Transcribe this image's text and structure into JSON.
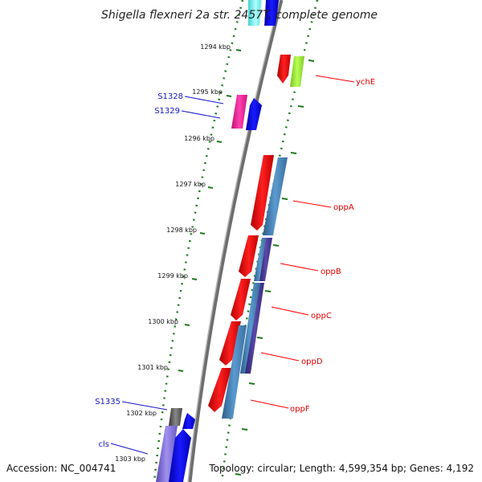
{
  "title": "Shigella flexneri 2a str. 2457T, complete genome",
  "footer": {
    "accession": "Accession: NC_004741",
    "topology": "Topology: circular; Length: 4,599,354 bp; Genes: 4,192"
  },
  "kbp_ticks": [
    "1294 kbp",
    "1295 kbp",
    "1296 kbp",
    "1297 kbp",
    "1298 kbp",
    "1299 kbp",
    "1300 kbp",
    "1301 kbp",
    "1302 kbp",
    "1303 kbp"
  ],
  "gene_labels": {
    "ychE": "ychE",
    "oppA": "oppA",
    "oppB": "oppB",
    "oppC": "oppC",
    "oppD": "oppD",
    "oppF": "oppF",
    "S1328": "S1328",
    "S1329": "S1329",
    "S1335": "S1335",
    "cls": "cls"
  },
  "colors": {
    "backbone": "#808080",
    "dotted_track": "#1e7a1e",
    "cds": "#ff0000",
    "forward_gene": "#0000ff",
    "pseudo_pink": "#ff1493",
    "ychE_green": "#99ee33",
    "opp_teal": "#4682b4",
    "opp_purple": "#4b3a8c",
    "cls_lavender": "#7766cc"
  }
}
